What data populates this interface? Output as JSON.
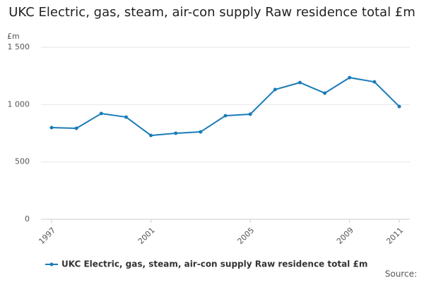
{
  "chart_data": {
    "type": "line",
    "title": "UKC Electric, gas, steam, air-con supply Raw residence total £m",
    "y_label": "£m",
    "source": "Source:",
    "x": [
      1997,
      1998,
      1999,
      2000,
      2001,
      2002,
      2003,
      2004,
      2005,
      2006,
      2007,
      2008,
      2009,
      2010,
      2011
    ],
    "series": [
      {
        "name": "UKC Electric, gas, steam, air-con supply Raw residence total £m",
        "color": "#1a7bb9",
        "values": [
          799,
          793,
          922,
          891,
          731,
          750,
          762,
          903,
          916,
          1131,
          1192,
          1100,
          1235,
          1198,
          983
        ]
      }
    ],
    "xlim": [
      1997,
      2011
    ],
    "xticks": [
      1997,
      2001,
      2005,
      2009,
      2011
    ],
    "ylim": [
      0,
      1500
    ],
    "yticks": [
      0,
      500,
      {
        "value": 1000,
        "label": "1 000"
      },
      {
        "value": 1500,
        "label": "1 500"
      }
    ],
    "grid": true
  }
}
